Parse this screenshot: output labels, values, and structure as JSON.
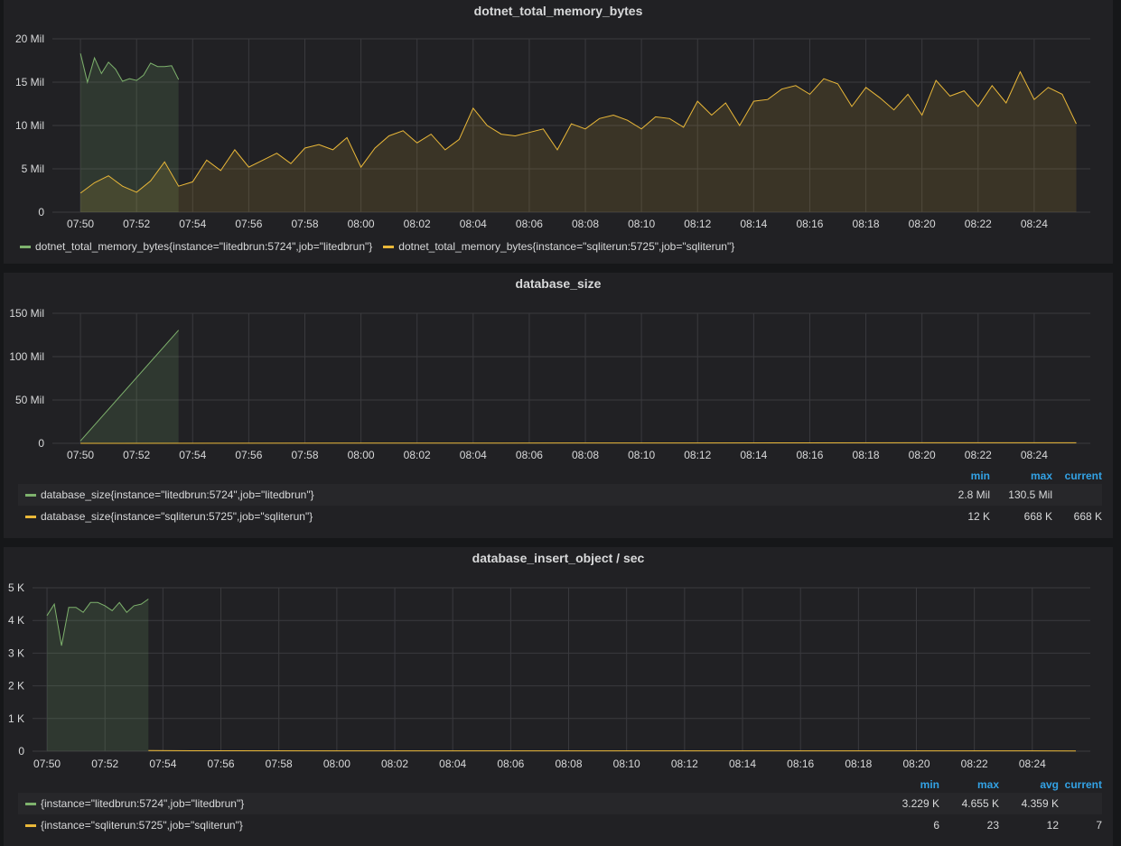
{
  "colors": {
    "series_green": "#7eb26d",
    "series_yellow": "#eab839",
    "header_blue": "#33a2e5"
  },
  "panels": [
    {
      "title": "dotnet_total_memory_bytes",
      "y_ticks": [
        "0",
        "5 Mil",
        "10 Mil",
        "15 Mil",
        "20 Mil"
      ],
      "x_ticks": [
        "07:50",
        "07:52",
        "07:54",
        "07:56",
        "07:58",
        "08:00",
        "08:02",
        "08:04",
        "08:06",
        "08:08",
        "08:10",
        "08:12",
        "08:14",
        "08:16",
        "08:18",
        "08:20",
        "08:22",
        "08:24"
      ],
      "legend": [
        {
          "name": "dotnet_total_memory_bytes{instance=\"litedbrun:5724\",job=\"litedbrun\"}",
          "color": "#7eb26d"
        },
        {
          "name": "dotnet_total_memory_bytes{instance=\"sqliterun:5725\",job=\"sqliterun\"}",
          "color": "#eab839"
        }
      ]
    },
    {
      "title": "database_size",
      "y_ticks": [
        "0",
        "50 Mil",
        "100 Mil",
        "150 Mil"
      ],
      "x_ticks": [
        "07:50",
        "07:52",
        "07:54",
        "07:56",
        "07:58",
        "08:00",
        "08:02",
        "08:04",
        "08:06",
        "08:08",
        "08:10",
        "08:12",
        "08:14",
        "08:16",
        "08:18",
        "08:20",
        "08:22",
        "08:24"
      ],
      "legend_headers": [
        "min",
        "max",
        "current"
      ],
      "legend": [
        {
          "name": "database_size{instance=\"litedbrun:5724\",job=\"litedbrun\"}",
          "color": "#7eb26d",
          "values": [
            "2.8 Mil",
            "130.5 Mil",
            ""
          ]
        },
        {
          "name": "database_size{instance=\"sqliterun:5725\",job=\"sqliterun\"}",
          "color": "#eab839",
          "values": [
            "12 K",
            "668 K",
            "668 K"
          ]
        }
      ]
    },
    {
      "title": "database_insert_object / sec",
      "y_ticks": [
        "0",
        "1 K",
        "2 K",
        "3 K",
        "4 K",
        "5 K"
      ],
      "x_ticks": [
        "07:50",
        "07:52",
        "07:54",
        "07:56",
        "07:58",
        "08:00",
        "08:02",
        "08:04",
        "08:06",
        "08:08",
        "08:10",
        "08:12",
        "08:14",
        "08:16",
        "08:18",
        "08:20",
        "08:22",
        "08:24"
      ],
      "legend_headers": [
        "min",
        "max",
        "avg",
        "current"
      ],
      "legend": [
        {
          "name": "{instance=\"litedbrun:5724\",job=\"litedbrun\"}",
          "color": "#7eb26d",
          "values": [
            "3.229 K",
            "4.655 K",
            "4.359 K",
            ""
          ]
        },
        {
          "name": "{instance=\"sqliterun:5725\",job=\"sqliterun\"}",
          "color": "#eab839",
          "values": [
            "6",
            "23",
            "12",
            "7"
          ]
        }
      ]
    }
  ],
  "chart_data": [
    {
      "type": "area",
      "title": "dotnet_total_memory_bytes",
      "ylim": [
        0,
        20000000
      ],
      "x_range": [
        "07:49",
        "08:26"
      ],
      "series": [
        {
          "name": "dotnet_total_memory_bytes{instance=\"litedbrun:5724\",job=\"litedbrun\"}",
          "x": [
            "07:50",
            "07:50:15",
            "07:50:30",
            "07:50:45",
            "07:51",
            "07:51:15",
            "07:51:30",
            "07:51:45",
            "07:52",
            "07:52:15",
            "07:52:30",
            "07:52:45",
            "07:53",
            "07:53:15",
            "07:53:30"
          ],
          "values": [
            18300000,
            15000000,
            17800000,
            16000000,
            17300000,
            16500000,
            15100000,
            15400000,
            15200000,
            15800000,
            17200000,
            16800000,
            16800000,
            16900000,
            15300000
          ]
        },
        {
          "name": "dotnet_total_memory_bytes{instance=\"sqliterun:5725\",job=\"sqliterun\"}",
          "x": [
            "07:50",
            "07:50:30",
            "07:51",
            "07:51:30",
            "07:52",
            "07:52:30",
            "07:53",
            "07:53:30",
            "07:54",
            "07:54:30",
            "07:55",
            "07:55:30",
            "07:56",
            "07:56:30",
            "07:57",
            "07:57:30",
            "07:58",
            "07:58:30",
            "07:59",
            "07:59:30",
            "08:00",
            "08:00:30",
            "08:01",
            "08:01:30",
            "08:02",
            "08:02:30",
            "08:03",
            "08:03:30",
            "08:04",
            "08:04:30",
            "08:05",
            "08:05:30",
            "08:06",
            "08:06:30",
            "08:07",
            "08:07:30",
            "08:08",
            "08:08:30",
            "08:09",
            "08:09:30",
            "08:10",
            "08:10:30",
            "08:11",
            "08:11:30",
            "08:12",
            "08:12:30",
            "08:13",
            "08:13:30",
            "08:14",
            "08:14:30",
            "08:15",
            "08:15:30",
            "08:16",
            "08:16:30",
            "08:17",
            "08:17:30",
            "08:18",
            "08:18:30",
            "08:19",
            "08:19:30",
            "08:20",
            "08:20:30",
            "08:21",
            "08:21:30",
            "08:22",
            "08:22:30",
            "08:23",
            "08:23:30",
            "08:24",
            "08:24:30",
            "08:25",
            "08:25:30"
          ],
          "values": [
            2200000,
            3400000,
            4200000,
            3000000,
            2300000,
            3600000,
            5800000,
            3000000,
            3500000,
            6000000,
            4800000,
            7200000,
            5200000,
            6000000,
            6800000,
            5600000,
            7400000,
            7800000,
            7200000,
            8600000,
            5200000,
            7400000,
            8800000,
            9400000,
            8000000,
            9000000,
            7200000,
            8400000,
            12000000,
            10000000,
            9000000,
            8800000,
            9200000,
            9600000,
            7200000,
            10200000,
            9600000,
            10800000,
            11200000,
            10600000,
            9600000,
            11000000,
            10800000,
            9800000,
            12800000,
            11200000,
            12600000,
            10000000,
            12800000,
            13000000,
            14200000,
            14600000,
            13600000,
            15400000,
            14800000,
            12200000,
            14400000,
            13200000,
            11800000,
            13600000,
            11200000,
            15200000,
            13400000,
            14000000,
            12200000,
            14600000,
            12600000,
            16200000,
            13000000,
            14400000,
            13600000,
            10200000
          ]
        }
      ]
    },
    {
      "type": "area",
      "title": "database_size",
      "ylim": [
        0,
        150000000
      ],
      "x_range": [
        "07:49",
        "08:26"
      ],
      "series": [
        {
          "name": "database_size{instance=\"litedbrun:5724\",job=\"litedbrun\"}",
          "x": [
            "07:50",
            "07:53:30"
          ],
          "values": [
            2800000,
            130500000
          ]
        },
        {
          "name": "database_size{instance=\"sqliterun:5725\",job=\"sqliterun\"}",
          "x": [
            "07:50",
            "07:55",
            "08:00",
            "08:05",
            "08:10",
            "08:15",
            "08:20",
            "08:25:30"
          ],
          "values": [
            12000,
            100000,
            200000,
            300000,
            400000,
            500000,
            600000,
            668000
          ]
        }
      ]
    },
    {
      "type": "area",
      "title": "database_insert_object / sec",
      "ylim": [
        0,
        5000
      ],
      "x_range": [
        "07:49:30",
        "08:26"
      ],
      "series": [
        {
          "name": "{instance=\"litedbrun:5724\",job=\"litedbrun\"}",
          "x": [
            "07:50",
            "07:50:15",
            "07:50:30",
            "07:50:45",
            "07:51",
            "07:51:15",
            "07:51:30",
            "07:51:45",
            "07:52",
            "07:52:15",
            "07:52:30",
            "07:52:45",
            "07:53",
            "07:53:15",
            "07:53:30"
          ],
          "values": [
            4150,
            4500,
            3229,
            4400,
            4400,
            4250,
            4550,
            4550,
            4450,
            4300,
            4550,
            4250,
            4450,
            4500,
            4655
          ]
        },
        {
          "name": "{instance=\"sqliterun:5725\",job=\"sqliterun\"}",
          "x": [
            "07:53:30",
            "07:55",
            "08:00",
            "08:05",
            "08:10",
            "08:15",
            "08:20",
            "08:25:30"
          ],
          "values": [
            23,
            15,
            12,
            10,
            12,
            11,
            12,
            7
          ]
        }
      ]
    }
  ]
}
